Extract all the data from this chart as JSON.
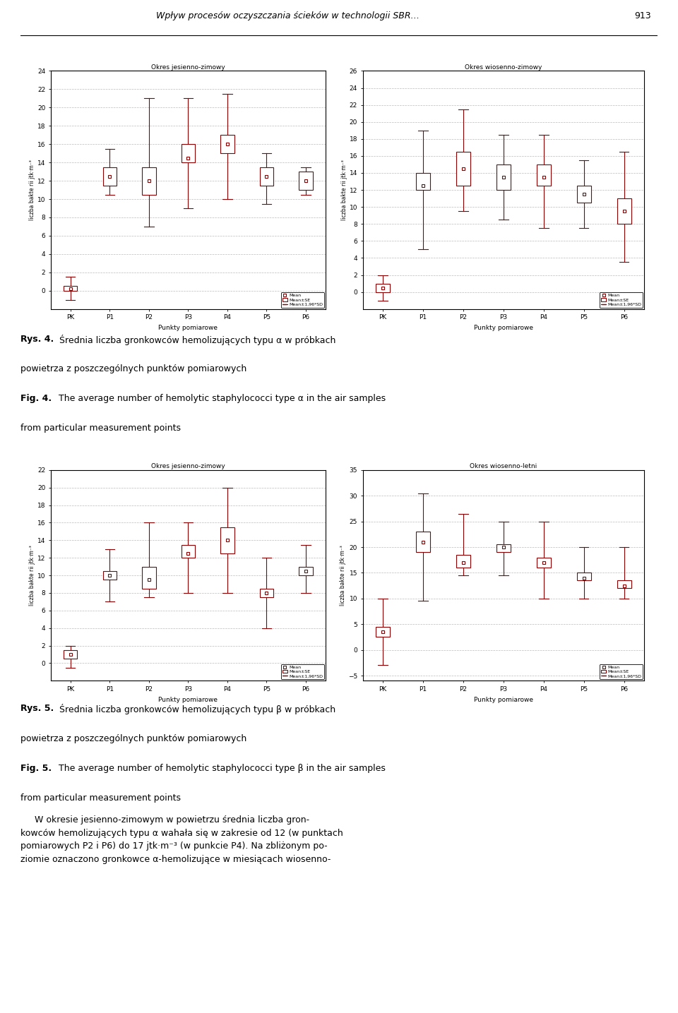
{
  "page_title": "Wpływ procesów oczyszczania ścieków w technologii SBR…",
  "page_number": "913",
  "categories": [
    "PK",
    "P1",
    "P2",
    "P3",
    "P4",
    "P5",
    "P6"
  ],
  "xlabel": "Punkty pomiarowe",
  "ylabel": "liczba bakte rii jtk·m⁻³",
  "fig4_left": {
    "title": "Okres jesienno-zimowy",
    "ylim": [
      -2,
      24
    ],
    "yticks": [
      0,
      2,
      4,
      6,
      8,
      10,
      12,
      14,
      16,
      18,
      20,
      22,
      24
    ],
    "means": [
      0.2,
      12.5,
      12.0,
      14.5,
      16.0,
      12.5,
      12.0
    ],
    "se_low": [
      0.0,
      11.5,
      10.5,
      14.0,
      15.0,
      11.5,
      11.0
    ],
    "se_high": [
      0.5,
      13.5,
      13.5,
      16.0,
      17.0,
      13.5,
      13.0
    ],
    "sd_low": [
      -1.0,
      10.5,
      7.0,
      9.0,
      10.0,
      9.5,
      10.5
    ],
    "sd_high": [
      1.5,
      15.5,
      21.0,
      21.0,
      21.5,
      15.0,
      13.5
    ]
  },
  "fig4_right": {
    "title": "Okres wiosenno-zimowy",
    "ylim": [
      -2,
      26
    ],
    "yticks": [
      0,
      2,
      4,
      6,
      8,
      10,
      12,
      14,
      16,
      18,
      20,
      22,
      24,
      26
    ],
    "means": [
      0.5,
      12.5,
      14.5,
      13.5,
      13.5,
      11.5,
      9.5
    ],
    "se_low": [
      0.0,
      12.0,
      12.5,
      12.0,
      12.5,
      10.5,
      8.0
    ],
    "se_high": [
      1.0,
      14.0,
      16.5,
      15.0,
      15.0,
      12.5,
      11.0
    ],
    "sd_low": [
      -1.0,
      5.0,
      9.5,
      8.5,
      7.5,
      7.5,
      3.5
    ],
    "sd_high": [
      2.0,
      19.0,
      21.5,
      18.5,
      18.5,
      15.5,
      16.5
    ]
  },
  "fig5_left": {
    "title": "Okres jesienno-zimowy",
    "ylim": [
      -2,
      22
    ],
    "yticks": [
      0,
      2,
      4,
      6,
      8,
      10,
      12,
      14,
      16,
      18,
      20,
      22
    ],
    "means": [
      1.0,
      10.0,
      9.5,
      12.5,
      14.0,
      8.0,
      10.5
    ],
    "se_low": [
      0.5,
      9.5,
      8.5,
      12.0,
      12.5,
      7.5,
      10.0
    ],
    "se_high": [
      1.5,
      10.5,
      11.0,
      13.5,
      15.5,
      8.5,
      11.0
    ],
    "sd_low": [
      -0.5,
      7.0,
      7.5,
      8.0,
      8.0,
      4.0,
      8.0
    ],
    "sd_high": [
      2.0,
      13.0,
      16.0,
      16.0,
      20.0,
      12.0,
      13.5
    ]
  },
  "fig5_right": {
    "title": "Okres wiosenno-letni",
    "ylim": [
      -6,
      35
    ],
    "yticks": [
      -5,
      0,
      5,
      10,
      15,
      20,
      25,
      30,
      35
    ],
    "means": [
      3.5,
      21.0,
      17.0,
      20.0,
      17.0,
      14.0,
      12.5
    ],
    "se_low": [
      2.5,
      19.0,
      16.0,
      19.0,
      16.0,
      13.5,
      12.0
    ],
    "se_high": [
      4.5,
      23.0,
      18.5,
      20.5,
      18.0,
      15.0,
      13.5
    ],
    "sd_low": [
      -3.0,
      9.5,
      14.5,
      14.5,
      10.0,
      10.0,
      10.0
    ],
    "sd_high": [
      10.0,
      30.5,
      26.5,
      25.0,
      25.0,
      20.0,
      20.0
    ]
  },
  "box_color": "#8B0000",
  "grid_color": "#AAAAAA"
}
